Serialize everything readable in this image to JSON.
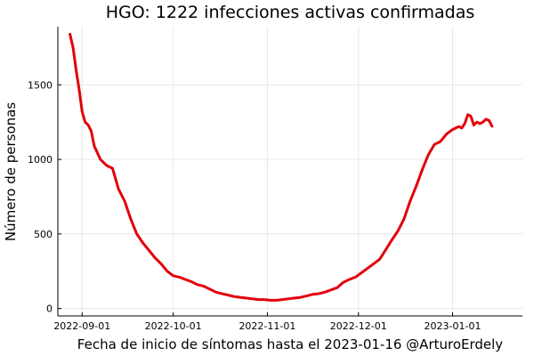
{
  "chart_data": {
    "type": "line",
    "title": "HGO: 1222 infecciones activas confirmadas",
    "xlabel": "Fecha de inicio de síntomas hasta el 2023-01-16 @ArturoErdely",
    "ylabel": "Número de personas",
    "x_ticks": [
      "2022-09-01",
      "2022-10-01",
      "2022-11-01",
      "2022-12-01",
      "2023-01-01"
    ],
    "y_ticks": [
      0,
      500,
      1000,
      1500
    ],
    "xlim": [
      "2022-08-24",
      "2023-01-24"
    ],
    "ylim": [
      -50,
      1890
    ],
    "grid": true,
    "line_color": "#e3000b",
    "series": [
      {
        "x": [
          "2022-08-28",
          "2022-08-29",
          "2022-08-30",
          "2022-08-31",
          "2022-09-01",
          "2022-09-02",
          "2022-09-03",
          "2022-09-04",
          "2022-09-05",
          "2022-09-07",
          "2022-09-09",
          "2022-09-10",
          "2022-09-11",
          "2022-09-13",
          "2022-09-15",
          "2022-09-17",
          "2022-09-19",
          "2022-09-21",
          "2022-09-23",
          "2022-09-25",
          "2022-09-27",
          "2022-09-29",
          "2022-10-01",
          "2022-10-03",
          "2022-10-05",
          "2022-10-07",
          "2022-10-09",
          "2022-10-11",
          "2022-10-13",
          "2022-10-15",
          "2022-10-17",
          "2022-10-19",
          "2022-10-21",
          "2022-10-23",
          "2022-10-25",
          "2022-10-27",
          "2022-10-29",
          "2022-10-31",
          "2022-11-02",
          "2022-11-04",
          "2022-11-06",
          "2022-11-08",
          "2022-11-10",
          "2022-11-12",
          "2022-11-14",
          "2022-11-16",
          "2022-11-18",
          "2022-11-20",
          "2022-11-22",
          "2022-11-24",
          "2022-11-26",
          "2022-11-28",
          "2022-11-30",
          "2022-12-02",
          "2022-12-04",
          "2022-12-06",
          "2022-12-08",
          "2022-12-10",
          "2022-12-12",
          "2022-12-14",
          "2022-12-16",
          "2022-12-18",
          "2022-12-20",
          "2022-12-22",
          "2022-12-24",
          "2022-12-26",
          "2022-12-28",
          "2022-12-30",
          "2023-01-01",
          "2023-01-03",
          "2023-01-04",
          "2023-01-05",
          "2023-01-06",
          "2023-01-07",
          "2023-01-08",
          "2023-01-09",
          "2023-01-10",
          "2023-01-11",
          "2023-01-12",
          "2023-01-13",
          "2023-01-14"
        ],
        "y": [
          1840,
          1750,
          1600,
          1470,
          1320,
          1250,
          1230,
          1190,
          1090,
          1000,
          960,
          950,
          940,
          800,
          720,
          600,
          500,
          440,
          390,
          340,
          300,
          250,
          220,
          210,
          195,
          180,
          160,
          150,
          130,
          110,
          100,
          90,
          80,
          75,
          70,
          65,
          60,
          60,
          55,
          55,
          60,
          65,
          70,
          75,
          85,
          95,
          100,
          110,
          125,
          140,
          175,
          195,
          210,
          240,
          270,
          300,
          330,
          395,
          460,
          520,
          600,
          720,
          820,
          930,
          1030,
          1100,
          1120,
          1170,
          1200,
          1220,
          1210,
          1240,
          1300,
          1290,
          1230,
          1250,
          1240,
          1250,
          1270,
          1260,
          1222
        ]
      }
    ]
  }
}
